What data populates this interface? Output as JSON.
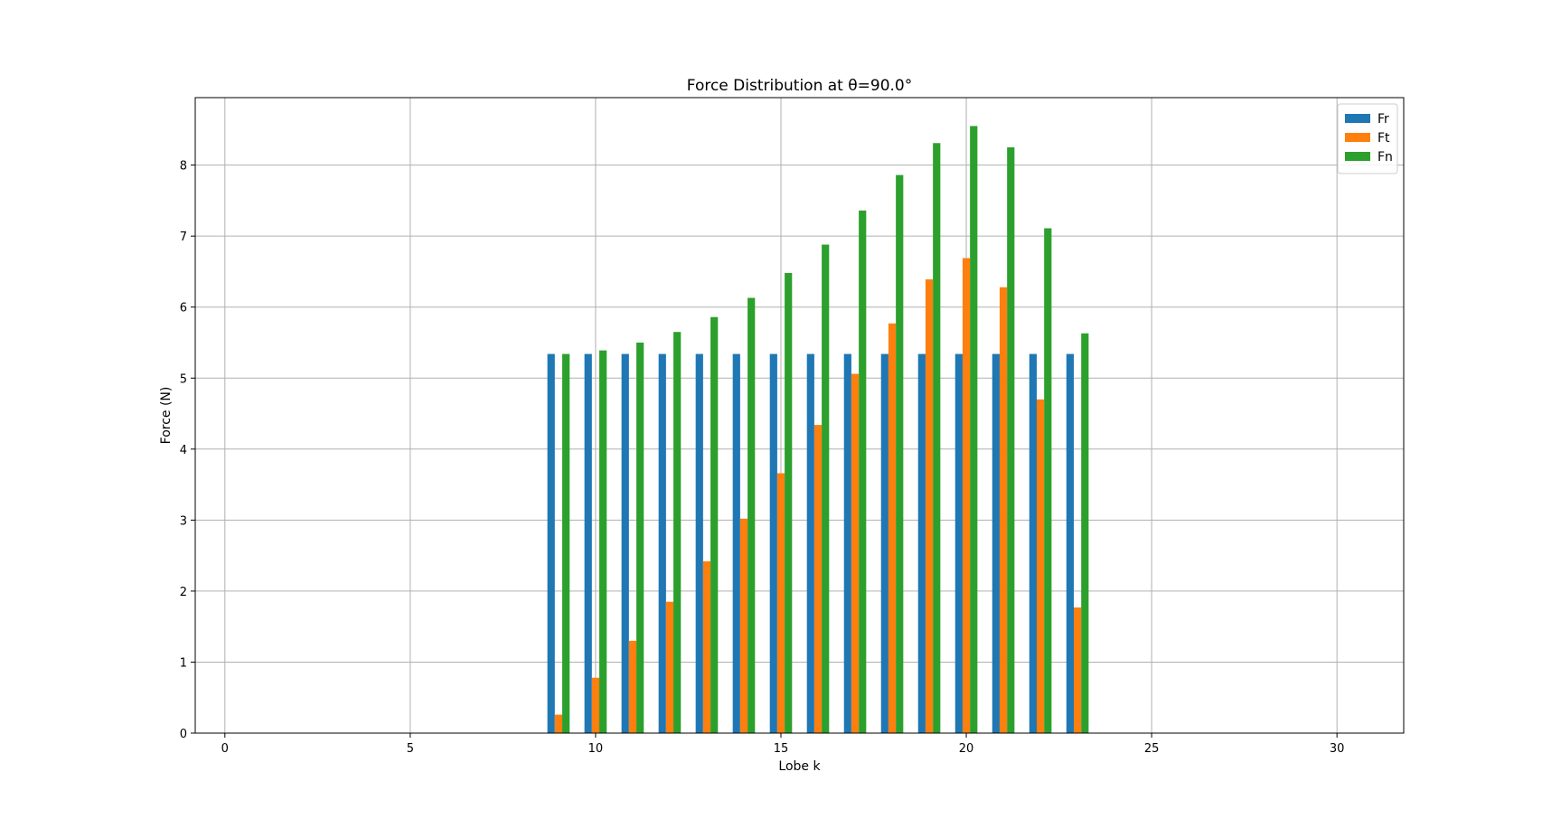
{
  "chart_data": {
    "type": "bar",
    "title": "Force Distribution at θ=90.0°",
    "xlabel": "Lobe k",
    "ylabel": "Force (N)",
    "xlim": [
      -0.8,
      31.8
    ],
    "ylim": [
      0,
      8.95
    ],
    "xticks": [
      0,
      5,
      10,
      15,
      20,
      25,
      30
    ],
    "yticks": [
      0,
      1,
      2,
      3,
      4,
      5,
      6,
      7,
      8
    ],
    "grid": true,
    "legend_position": "top-right",
    "x": [
      9,
      10,
      11,
      12,
      13,
      14,
      15,
      16,
      17,
      18,
      19,
      20,
      21,
      22,
      23
    ],
    "series": [
      {
        "name": "Fr",
        "color": "#1f77b4",
        "values": [
          5.34,
          5.34,
          5.34,
          5.34,
          5.34,
          5.34,
          5.34,
          5.34,
          5.34,
          5.34,
          5.34,
          5.34,
          5.34,
          5.34,
          5.34
        ]
      },
      {
        "name": "Ft",
        "color": "#ff7f0e",
        "values": [
          0.26,
          0.78,
          1.3,
          1.85,
          2.42,
          3.02,
          3.66,
          4.34,
          5.06,
          5.77,
          6.39,
          6.69,
          6.28,
          4.7,
          1.77
        ]
      },
      {
        "name": "Fn",
        "color": "#2ca02c",
        "values": [
          5.34,
          5.39,
          5.5,
          5.65,
          5.86,
          6.13,
          6.48,
          6.88,
          7.36,
          7.86,
          8.31,
          8.55,
          8.25,
          7.11,
          5.63
        ]
      }
    ]
  }
}
